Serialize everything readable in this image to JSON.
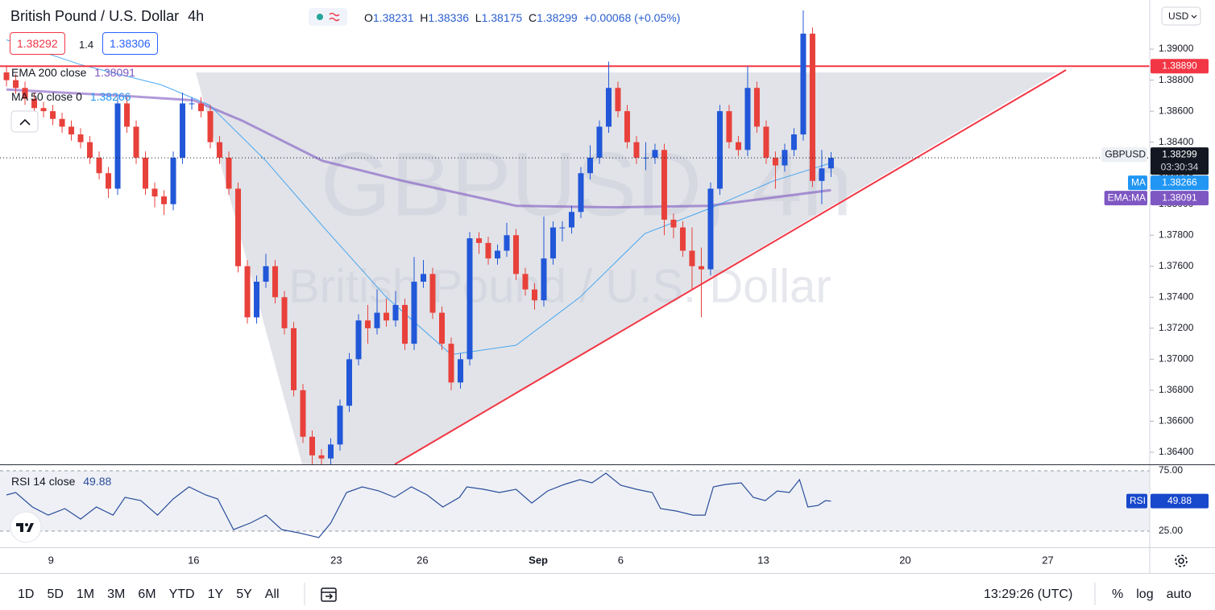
{
  "toolbar": {
    "interval": "4h",
    "ohlc": [
      {
        "label": "O",
        "value": 1.38231
      },
      {
        "label": "H",
        "value": 1.38336
      },
      {
        "label": "L",
        "value": 1.38175
      },
      {
        "label": "C",
        "value": 1.38299
      }
    ],
    "change": "+0.00068 (+0.05%)",
    "sell": 1.38292,
    "spread": 1.4,
    "buy": 1.38306,
    "currency": "USD"
  },
  "chart_data": [
    {
      "type": "candlestick",
      "title": "British Pound / U.S. Dollar",
      "watermark": "GBPUSD, 4h",
      "up_color": "#2157d8",
      "down_color": "#e8413b",
      "open": [
        1.3885,
        1.388,
        1.3875,
        1.3868,
        1.3862,
        1.386,
        1.3855,
        1.385,
        1.3845,
        1.384,
        1.383,
        1.382,
        1.381,
        1.3865,
        1.385,
        1.383,
        1.381,
        1.3805,
        1.38,
        1.383,
        1.3865,
        1.3865,
        1.386,
        1.384,
        1.383,
        1.381,
        1.376,
        1.3727,
        1.375,
        1.376,
        1.374,
        1.372,
        1.368,
        1.365,
        1.3638,
        1.3636,
        1.3645,
        1.367,
        1.37,
        1.3725,
        1.372,
        1.373,
        1.3725,
        1.3735,
        1.371,
        1.375,
        1.3755,
        1.373,
        1.371,
        1.3685,
        1.37,
        1.3778,
        1.3775,
        1.3765,
        1.377,
        1.378,
        1.3755,
        1.3745,
        1.3738,
        1.3765,
        1.3785,
        1.3785,
        1.3795,
        1.382,
        1.383,
        1.385,
        1.3875,
        1.386,
        1.384,
        1.383,
        1.383,
        1.3835,
        1.379,
        1.3785,
        1.377,
        1.376,
        1.3758,
        1.381,
        1.386,
        1.384,
        1.3835,
        1.3875,
        1.385,
        1.383,
        1.3825,
        1.3835,
        1.3845,
        1.391,
        1.3815,
        1.38231
      ],
      "high": [
        1.3889,
        1.3884,
        1.3879,
        1.3872,
        1.3866,
        1.3864,
        1.3859,
        1.3854,
        1.3849,
        1.3844,
        1.3834,
        1.3824,
        1.3869,
        1.3869,
        1.3854,
        1.3834,
        1.3814,
        1.3809,
        1.3834,
        1.3872,
        1.3869,
        1.3869,
        1.3864,
        1.3844,
        1.3834,
        1.3814,
        1.3764,
        1.3754,
        1.3768,
        1.3764,
        1.3744,
        1.3724,
        1.3684,
        1.3654,
        1.3642,
        1.3649,
        1.3674,
        1.3704,
        1.3729,
        1.3735,
        1.3745,
        1.3739,
        1.3744,
        1.3739,
        1.3766,
        1.3764,
        1.3759,
        1.3734,
        1.3714,
        1.3704,
        1.3782,
        1.3782,
        1.3779,
        1.3774,
        1.3788,
        1.3784,
        1.3759,
        1.3749,
        1.3792,
        1.3789,
        1.3789,
        1.3799,
        1.3824,
        1.3838,
        1.3854,
        1.3892,
        1.3879,
        1.3864,
        1.3844,
        1.384,
        1.3839,
        1.3839,
        1.3794,
        1.3789,
        1.3785,
        1.3772,
        1.3814,
        1.3864,
        1.3864,
        1.3844,
        1.3889,
        1.3879,
        1.3854,
        1.3834,
        1.3839,
        1.3849,
        1.3925,
        1.3914,
        1.3835,
        1.38336
      ],
      "low": [
        1.3876,
        1.3871,
        1.3864,
        1.3858,
        1.3856,
        1.3851,
        1.3846,
        1.3841,
        1.3836,
        1.3826,
        1.3816,
        1.3804,
        1.3806,
        1.3846,
        1.3826,
        1.3806,
        1.3798,
        1.3793,
        1.3796,
        1.3826,
        1.3861,
        1.3856,
        1.3836,
        1.3826,
        1.3806,
        1.3756,
        1.3723,
        1.3723,
        1.3746,
        1.3736,
        1.3716,
        1.3676,
        1.3646,
        1.3632,
        1.3632,
        1.3632,
        1.3641,
        1.3666,
        1.3696,
        1.371,
        1.3716,
        1.3721,
        1.3721,
        1.3706,
        1.3706,
        1.3746,
        1.3726,
        1.3706,
        1.368,
        1.3681,
        1.3696,
        1.3768,
        1.3761,
        1.3761,
        1.3766,
        1.3751,
        1.3741,
        1.3732,
        1.3734,
        1.3761,
        1.3776,
        1.3781,
        1.3791,
        1.3816,
        1.3826,
        1.3846,
        1.3856,
        1.3836,
        1.3826,
        1.3822,
        1.3826,
        1.378,
        1.3778,
        1.3766,
        1.3745,
        1.3727,
        1.3754,
        1.3806,
        1.3836,
        1.3831,
        1.3831,
        1.3846,
        1.3826,
        1.381,
        1.3821,
        1.3831,
        1.3841,
        1.3811,
        1.38,
        1.38175
      ],
      "close": [
        1.388,
        1.3875,
        1.3868,
        1.3862,
        1.386,
        1.3855,
        1.385,
        1.3845,
        1.384,
        1.383,
        1.382,
        1.381,
        1.3865,
        1.385,
        1.383,
        1.381,
        1.3805,
        1.38,
        1.383,
        1.3865,
        1.3865,
        1.386,
        1.384,
        1.383,
        1.381,
        1.376,
        1.3727,
        1.375,
        1.376,
        1.374,
        1.372,
        1.368,
        1.365,
        1.3638,
        1.3636,
        1.3645,
        1.367,
        1.37,
        1.3725,
        1.372,
        1.373,
        1.3725,
        1.3735,
        1.371,
        1.375,
        1.3755,
        1.373,
        1.371,
        1.3685,
        1.37,
        1.3778,
        1.3775,
        1.3765,
        1.377,
        1.378,
        1.3755,
        1.3745,
        1.3738,
        1.3765,
        1.3785,
        1.3785,
        1.3795,
        1.382,
        1.383,
        1.385,
        1.3875,
        1.386,
        1.384,
        1.383,
        1.383,
        1.3835,
        1.379,
        1.3785,
        1.377,
        1.376,
        1.3758,
        1.381,
        1.386,
        1.384,
        1.3835,
        1.3875,
        1.385,
        1.383,
        1.3825,
        1.3835,
        1.3845,
        1.391,
        1.3815,
        1.38231,
        1.38299
      ],
      "overlays": [
        {
          "name": "EMA 200 close",
          "tag": "EMA:MA",
          "color": "#7e57c2",
          "x": [
            0,
            12.3,
            20.2,
            25.4,
            34.1,
            42.8,
            55,
            65.4,
            75.8,
            89
          ],
          "values": [
            1.3874,
            1.387,
            1.3867,
            1.3854,
            1.3828,
            1.3815,
            1.3799,
            1.3798,
            1.3799,
            1.38091
          ]
        },
        {
          "name": "MA 50 close 0",
          "tag": "MA",
          "color": "#2196f3",
          "x": [
            0,
            8,
            16.7,
            21.9,
            28,
            34.1,
            41,
            48,
            55,
            61.9,
            68.9,
            75.8,
            82.8,
            89
          ],
          "values": [
            1.3906,
            1.389,
            1.3877,
            1.3864,
            1.3828,
            1.3786,
            1.374,
            1.3703,
            1.3709,
            1.374,
            1.3781,
            1.3797,
            1.3815,
            1.38266
          ]
        }
      ],
      "last_price": {
        "name": "GBPUSD",
        "value": 1.38299,
        "countdown": "03:30:34"
      },
      "resistance": {
        "value": 1.3889,
        "label": "1.38890",
        "color": "#f23645"
      },
      "xlim": [
        -0.7,
        123.4
      ],
      "xticks": [
        {
          "value": 4.8,
          "label": "9"
        },
        {
          "value": 20.2,
          "label": "16"
        },
        {
          "value": 35.6,
          "label": "23"
        },
        {
          "value": 44.9,
          "label": "26"
        },
        {
          "value": 57.4,
          "label": "Sep"
        },
        {
          "value": 66.3,
          "label": "6"
        },
        {
          "value": 81.7,
          "label": "13"
        },
        {
          "value": 97,
          "label": "20"
        },
        {
          "value": 112.4,
          "label": "27"
        }
      ],
      "ylim": [
        1.36322,
        1.39317
      ],
      "yticks": [
        {
          "value": 1.364,
          "label": "1.36400"
        },
        {
          "value": 1.366,
          "label": "1.36600"
        },
        {
          "value": 1.368,
          "label": "1.36800"
        },
        {
          "value": 1.37,
          "label": "1.37000"
        },
        {
          "value": 1.372,
          "label": "1.37200"
        },
        {
          "value": 1.374,
          "label": "1.37400"
        },
        {
          "value": 1.376,
          "label": "1.37600"
        },
        {
          "value": 1.378,
          "label": "1.37800"
        },
        {
          "value": 1.38,
          "label": "1.38000"
        },
        {
          "value": 1.382,
          "label": "1.38200"
        },
        {
          "value": 1.384,
          "label": "1.38400"
        },
        {
          "value": 1.386,
          "label": "1.38600"
        },
        {
          "value": 1.388,
          "label": "1.38800"
        },
        {
          "value": 1.39,
          "label": "1.39000"
        }
      ]
    },
    {
      "type": "line",
      "name": "RSI 14 close",
      "tag": "RSI",
      "color": "#2a4d9b",
      "band_color": "#eef0f5",
      "x": [
        0,
        1,
        2.8,
        4.5,
        6.3,
        8,
        9.7,
        11.5,
        12.8,
        14.5,
        16.3,
        18,
        19.7,
        21.5,
        22.8,
        24.5,
        26.3,
        28,
        29.7,
        31.5,
        33.7,
        35,
        36.7,
        38.4,
        40.2,
        41.9,
        43.7,
        45.4,
        47.1,
        48.9,
        49.7,
        51.5,
        53.2,
        55,
        56.7,
        58.4,
        60.2,
        61.9,
        63.2,
        64.7,
        66.3,
        68,
        69.7,
        70.6,
        72.3,
        74.1,
        75.4,
        76.3,
        77.6,
        79.3,
        80.6,
        81.9,
        83.2,
        84.5,
        85.6,
        86.5,
        87.6,
        88.4,
        89
      ],
      "values": [
        55,
        57,
        45,
        38.3,
        43.7,
        35,
        45,
        38.3,
        53,
        50.3,
        38.3,
        51.7,
        61.7,
        55,
        51.7,
        26.3,
        31.7,
        38.3,
        26.3,
        23.7,
        19.7,
        31.7,
        57,
        61.7,
        58.3,
        53,
        61.7,
        55,
        45,
        53,
        61.7,
        59.7,
        57,
        59.7,
        48.3,
        58.3,
        63.7,
        67.7,
        65,
        73,
        63,
        59.7,
        57,
        43.7,
        41.7,
        38.3,
        38.3,
        61.7,
        63.7,
        65,
        53,
        50.3,
        58.3,
        57,
        67.7,
        45,
        46.3,
        50.3,
        49.88
      ],
      "xlim": [
        -0.7,
        123.4
      ],
      "ylim": [
        11.67,
        79.67
      ],
      "yticks": [
        {
          "value": 75,
          "label": "75.00"
        },
        {
          "value": 25,
          "label": "25.00"
        }
      ]
    }
  ],
  "footer": {
    "ranges": [
      "1D",
      "5D",
      "1M",
      "3M",
      "6M",
      "YTD",
      "1Y",
      "5Y",
      "All"
    ],
    "clock": "13:29:26 (UTC)",
    "scale_options": [
      "%",
      "log",
      "auto"
    ]
  }
}
